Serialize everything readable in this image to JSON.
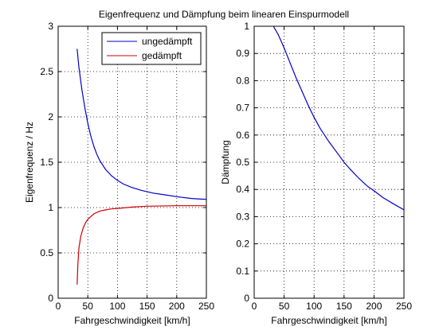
{
  "title": "Eigenfrequenz und Dämpfung beim linearen Einspurmodell",
  "colors": {
    "series_1": "#0000cc",
    "series_2": "#cc0000",
    "grid": "#000000",
    "axes": "#000000"
  },
  "chart_data": [
    {
      "type": "line",
      "xlabel": "Fahrgeschwindigkeit [km/h]",
      "ylabel": "Eigenfrequenz / Hz",
      "xlim": [
        0,
        250
      ],
      "ylim": [
        0,
        3
      ],
      "xticks": [
        0,
        50,
        100,
        150,
        200,
        250
      ],
      "yticks": [
        0,
        0.5,
        1,
        1.5,
        2,
        2.5,
        3
      ],
      "grid": true,
      "legend_position": "top-right",
      "series": [
        {
          "name": "ungedämpft",
          "color": "#0000cc",
          "x": [
            32,
            35,
            40,
            45,
            50,
            55,
            60,
            65,
            70,
            80,
            90,
            100,
            110,
            125,
            140,
            160,
            180,
            200,
            225,
            250
          ],
          "y": [
            2.75,
            2.55,
            2.3,
            2.1,
            1.93,
            1.79,
            1.68,
            1.59,
            1.52,
            1.42,
            1.35,
            1.3,
            1.26,
            1.22,
            1.19,
            1.16,
            1.14,
            1.12,
            1.1,
            1.09
          ]
        },
        {
          "name": "gedämpft",
          "color": "#cc0000",
          "x": [
            32,
            33,
            35,
            38,
            42,
            46,
            50,
            55,
            60,
            70,
            80,
            90,
            100,
            125,
            150,
            200,
            250
          ],
          "y": [
            0.15,
            0.35,
            0.55,
            0.68,
            0.77,
            0.83,
            0.87,
            0.9,
            0.93,
            0.96,
            0.975,
            0.985,
            0.99,
            1.005,
            1.015,
            1.02,
            1.02
          ]
        }
      ]
    },
    {
      "type": "line",
      "xlabel": "Fahrgeschwindigkeit [km/h]",
      "ylabel": "Dämpfung",
      "xlim": [
        0,
        250
      ],
      "ylim": [
        0,
        1
      ],
      "xticks": [
        0,
        50,
        100,
        150,
        200,
        250
      ],
      "yticks": [
        0,
        0.1,
        0.2,
        0.3,
        0.4,
        0.5,
        0.6,
        0.7,
        0.8,
        0.9,
        1
      ],
      "grid": true,
      "series": [
        {
          "color": "#0000cc",
          "x": [
            32,
            40,
            50,
            60,
            70,
            80,
            90,
            100,
            110,
            125,
            140,
            150,
            160,
            175,
            190,
            200,
            215,
            230,
            250
          ],
          "y": [
            1.0,
            0.97,
            0.92,
            0.865,
            0.81,
            0.76,
            0.71,
            0.665,
            0.625,
            0.575,
            0.53,
            0.5,
            0.475,
            0.44,
            0.41,
            0.395,
            0.37,
            0.35,
            0.325
          ]
        }
      ]
    }
  ]
}
